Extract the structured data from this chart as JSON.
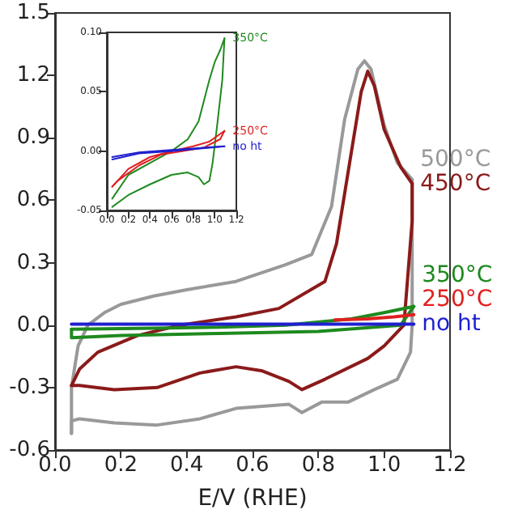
{
  "chart_data": [
    {
      "type": "line",
      "xlabel": "E/V (RHE)",
      "grid": false,
      "legend": false,
      "marker": "none",
      "line_style": "solid",
      "xlim": [
        0,
        1.2
      ],
      "xticks": [
        {
          "value": 0,
          "label": "0.0"
        },
        {
          "value": 0.2,
          "label": "0.2"
        },
        {
          "value": 0.4,
          "label": "0.4"
        },
        {
          "value": 0.6,
          "label": "0.6"
        },
        {
          "value": 0.8,
          "label": "0.8"
        },
        {
          "value": 1,
          "label": "1.0"
        },
        {
          "value": 1.2,
          "label": "1.2"
        }
      ],
      "ylim": [
        -0.6,
        1.5
      ],
      "yticks": [
        {
          "value": -0.6,
          "label": "-0.6"
        },
        {
          "value": -0.3,
          "label": "-0.3"
        },
        {
          "value": 0,
          "label": "0.0"
        },
        {
          "value": 0.3,
          "label": "0.3"
        },
        {
          "value": 0.6,
          "label": "0.6"
        },
        {
          "value": 0.9,
          "label": "0.9"
        },
        {
          "value": 1.2,
          "label": "1.2"
        },
        {
          "value": 1.5,
          "label": "1.5"
        }
      ],
      "series": [
        {
          "name": "no ht",
          "color": "#1f1fd0",
          "x": [
            0.05,
            0.3,
            0.6,
            0.9,
            1.09
          ],
          "values": [
            0.005,
            0.005,
            0.005,
            0.005,
            0.005
          ]
        },
        {
          "name": "250°C",
          "color": "#e02020",
          "x": [
            0.85,
            0.95,
            1.03,
            1.09
          ],
          "values": [
            0.025,
            0.03,
            0.04,
            0.05
          ]
        },
        {
          "name": "350°C",
          "color": "#1e8a1e",
          "x": [
            0.05,
            0.3,
            0.5,
            0.7,
            0.9,
            1.0,
            1.09
          ],
          "values": [
            -0.02,
            -0.015,
            -0.01,
            0.0,
            0.03,
            0.06,
            0.09
          ]
        },
        {
          "color": "#1e8a1e",
          "x": [
            1.09,
            1.05,
            0.8,
            0.5,
            0.2,
            0.05,
            0.05
          ],
          "values": [
            0.09,
            0.0,
            -0.03,
            -0.04,
            -0.05,
            -0.06,
            -0.02
          ]
        },
        {
          "name": "450°C",
          "color": "#8b1a1a",
          "x": [
            0.05,
            0.075,
            0.13,
            0.25,
            0.38,
            0.55,
            0.68,
            0.82,
            0.855,
            0.895,
            0.93,
            0.95,
            0.97,
            1.0,
            1.05,
            1.085
          ],
          "values": [
            -0.29,
            -0.21,
            -0.13,
            -0.05,
            0.0,
            0.04,
            0.08,
            0.21,
            0.39,
            0.78,
            1.12,
            1.22,
            1.15,
            0.94,
            0.76,
            0.68
          ]
        },
        {
          "color": "#8b1a1a",
          "x": [
            1.085,
            1.085,
            1.06,
            1.0,
            0.95,
            0.82,
            0.75,
            0.71,
            0.63,
            0.55,
            0.44,
            0.31,
            0.18,
            0.075,
            0.05
          ],
          "values": [
            0.68,
            0.5,
            0.0,
            -0.1,
            -0.16,
            -0.26,
            -0.31,
            -0.27,
            -0.22,
            -0.2,
            -0.23,
            -0.3,
            -0.31,
            -0.29,
            -0.29
          ]
        },
        {
          "name": "500°C",
          "color": "#999999",
          "x": [
            0.05,
            0.05,
            0.07,
            0.1,
            0.15,
            0.2,
            0.3,
            0.4,
            0.55,
            0.7,
            0.78,
            0.84,
            0.88,
            0.92,
            0.94,
            0.96,
            1.0,
            1.04,
            1.085
          ],
          "values": [
            -0.52,
            -0.3,
            -0.1,
            0.0,
            0.06,
            0.1,
            0.14,
            0.17,
            0.21,
            0.29,
            0.34,
            0.57,
            0.99,
            1.23,
            1.27,
            1.23,
            0.96,
            0.78,
            0.7
          ]
        },
        {
          "color": "#999999",
          "x": [
            1.085,
            1.085,
            1.08,
            1.04,
            0.97,
            0.89,
            0.81,
            0.75,
            0.71,
            0.63,
            0.55,
            0.44,
            0.31,
            0.18,
            0.075,
            0.05,
            0.05
          ],
          "values": [
            0.7,
            0.0,
            -0.13,
            -0.26,
            -0.31,
            -0.37,
            -0.37,
            -0.42,
            -0.38,
            -0.39,
            -0.4,
            -0.45,
            -0.48,
            -0.47,
            -0.45,
            -0.46,
            -0.52
          ]
        }
      ]
    },
    {
      "type": "line",
      "grid": false,
      "legend": false,
      "marker": "none",
      "line_style": "solid",
      "xlim": [
        0,
        1.2
      ],
      "xticks": [
        {
          "value": 0,
          "label": "0.0"
        },
        {
          "value": 0.2,
          "label": "0.2"
        },
        {
          "value": 0.4,
          "label": "0.4"
        },
        {
          "value": 0.6,
          "label": "0.6"
        },
        {
          "value": 0.8,
          "label": "0.8"
        },
        {
          "value": 1,
          "label": "1.0"
        },
        {
          "value": 1.2,
          "label": "1.2"
        }
      ],
      "ylim": [
        -0.05,
        0.1
      ],
      "yticks": [
        {
          "value": -0.05,
          "label": "-0.05"
        },
        {
          "value": 0,
          "label": "0.00"
        },
        {
          "value": 0.05,
          "label": "0.05"
        },
        {
          "value": 0.1,
          "label": "0.10"
        }
      ],
      "series": [
        {
          "name": "no ht",
          "color": "#1f1fd0",
          "x": [
            0.05,
            0.3,
            0.6,
            1.09
          ],
          "values": [
            -0.007,
            -0.002,
            0.0,
            0.004
          ]
        },
        {
          "color": "#1f1fd0",
          "x": [
            1.09,
            0.6,
            0.3,
            0.05
          ],
          "values": [
            0.004,
            0.001,
            -0.001,
            -0.005
          ]
        },
        {
          "name": "250°C",
          "color": "#e02020",
          "x": [
            0.05,
            0.2,
            0.4,
            0.6,
            0.8,
            0.95,
            1.09
          ],
          "values": [
            -0.03,
            -0.015,
            -0.005,
            0.0,
            0.004,
            0.008,
            0.017
          ]
        },
        {
          "color": "#e02020",
          "x": [
            1.09,
            1.05,
            0.9,
            0.7,
            0.5,
            0.3,
            0.1,
            0.05
          ],
          "values": [
            0.017,
            0.01,
            0.003,
            0.0,
            -0.003,
            -0.012,
            -0.025,
            -0.03
          ]
        },
        {
          "name": "350°C",
          "color": "#1e8a1e",
          "x": [
            0.05,
            0.2,
            0.4,
            0.6,
            0.75,
            0.85,
            0.95,
            1.0,
            1.05,
            1.09
          ],
          "values": [
            -0.04,
            -0.02,
            -0.01,
            0.0,
            0.01,
            0.025,
            0.06,
            0.075,
            0.085,
            0.095
          ]
        },
        {
          "color": "#1e8a1e",
          "x": [
            1.09,
            1.07,
            1.02,
            0.98,
            0.95,
            0.9,
            0.85,
            0.75,
            0.6,
            0.4,
            0.2,
            0.05
          ],
          "values": [
            0.095,
            0.06,
            0.02,
            -0.01,
            -0.025,
            -0.028,
            -0.022,
            -0.018,
            -0.02,
            -0.028,
            -0.037,
            -0.047
          ]
        }
      ]
    }
  ]
}
